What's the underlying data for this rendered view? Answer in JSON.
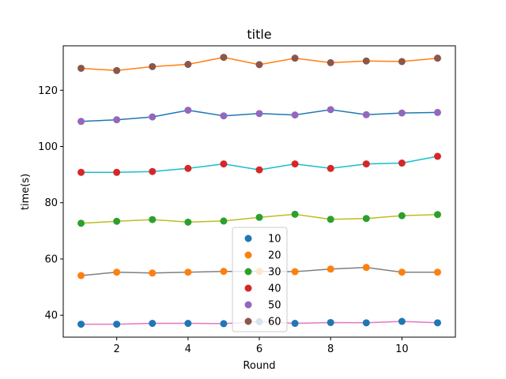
{
  "chart_data": {
    "type": "scatter",
    "title": "title",
    "xlabel": "Round",
    "ylabel": "time(s)",
    "xlim": [
      0.5,
      11.5
    ],
    "ylim": [
      32.2,
      135.8
    ],
    "xticks": [
      2,
      4,
      6,
      8,
      10
    ],
    "yticks": [
      40,
      60,
      80,
      100,
      120
    ],
    "grid": false,
    "legend_position": "bottom-center",
    "series": [
      {
        "name": "10",
        "color": "#1f77b4",
        "line_color": "#e377c2",
        "x": [
          1,
          2,
          3,
          4,
          5,
          6,
          7,
          8,
          9,
          10,
          11
        ],
        "y": [
          36.8,
          36.8,
          37.1,
          37.1,
          37.0,
          37.7,
          37.1,
          37.4,
          37.3,
          37.8,
          37.3
        ]
      },
      {
        "name": "20",
        "color": "#ff7f0e",
        "line_color": "#7f7f7f",
        "x": [
          1,
          2,
          3,
          4,
          5,
          6,
          7,
          8,
          9,
          10,
          11
        ],
        "y": [
          54.1,
          55.3,
          55.0,
          55.3,
          55.6,
          55.6,
          55.5,
          56.4,
          57.0,
          55.3,
          55.3
        ]
      },
      {
        "name": "30",
        "color": "#2ca02c",
        "line_color": "#bcbd22",
        "x": [
          1,
          2,
          3,
          4,
          5,
          6,
          7,
          8,
          9,
          10,
          11
        ],
        "y": [
          72.7,
          73.4,
          74.0,
          73.1,
          73.5,
          74.8,
          75.9,
          74.1,
          74.4,
          75.4,
          75.8
        ]
      },
      {
        "name": "40",
        "color": "#d62728",
        "line_color": "#17becf",
        "x": [
          1,
          2,
          3,
          4,
          5,
          6,
          7,
          8,
          9,
          10,
          11
        ],
        "y": [
          90.8,
          90.8,
          91.1,
          92.2,
          93.8,
          91.7,
          93.8,
          92.2,
          93.8,
          94.1,
          96.5
        ]
      },
      {
        "name": "50",
        "color": "#9467bd",
        "line_color": "#1f77b4",
        "x": [
          1,
          2,
          3,
          4,
          5,
          6,
          7,
          8,
          9,
          10,
          11
        ],
        "y": [
          108.9,
          109.5,
          110.5,
          112.9,
          110.9,
          111.7,
          111.2,
          113.1,
          111.3,
          111.9,
          112.1
        ]
      },
      {
        "name": "60",
        "color": "#8c564b",
        "line_color": "#ff7f0e",
        "x": [
          1,
          2,
          3,
          4,
          5,
          6,
          7,
          8,
          9,
          10,
          11
        ],
        "y": [
          127.8,
          127.0,
          128.4,
          129.2,
          131.7,
          129.1,
          131.4,
          129.8,
          130.4,
          130.2,
          131.4
        ]
      }
    ]
  }
}
